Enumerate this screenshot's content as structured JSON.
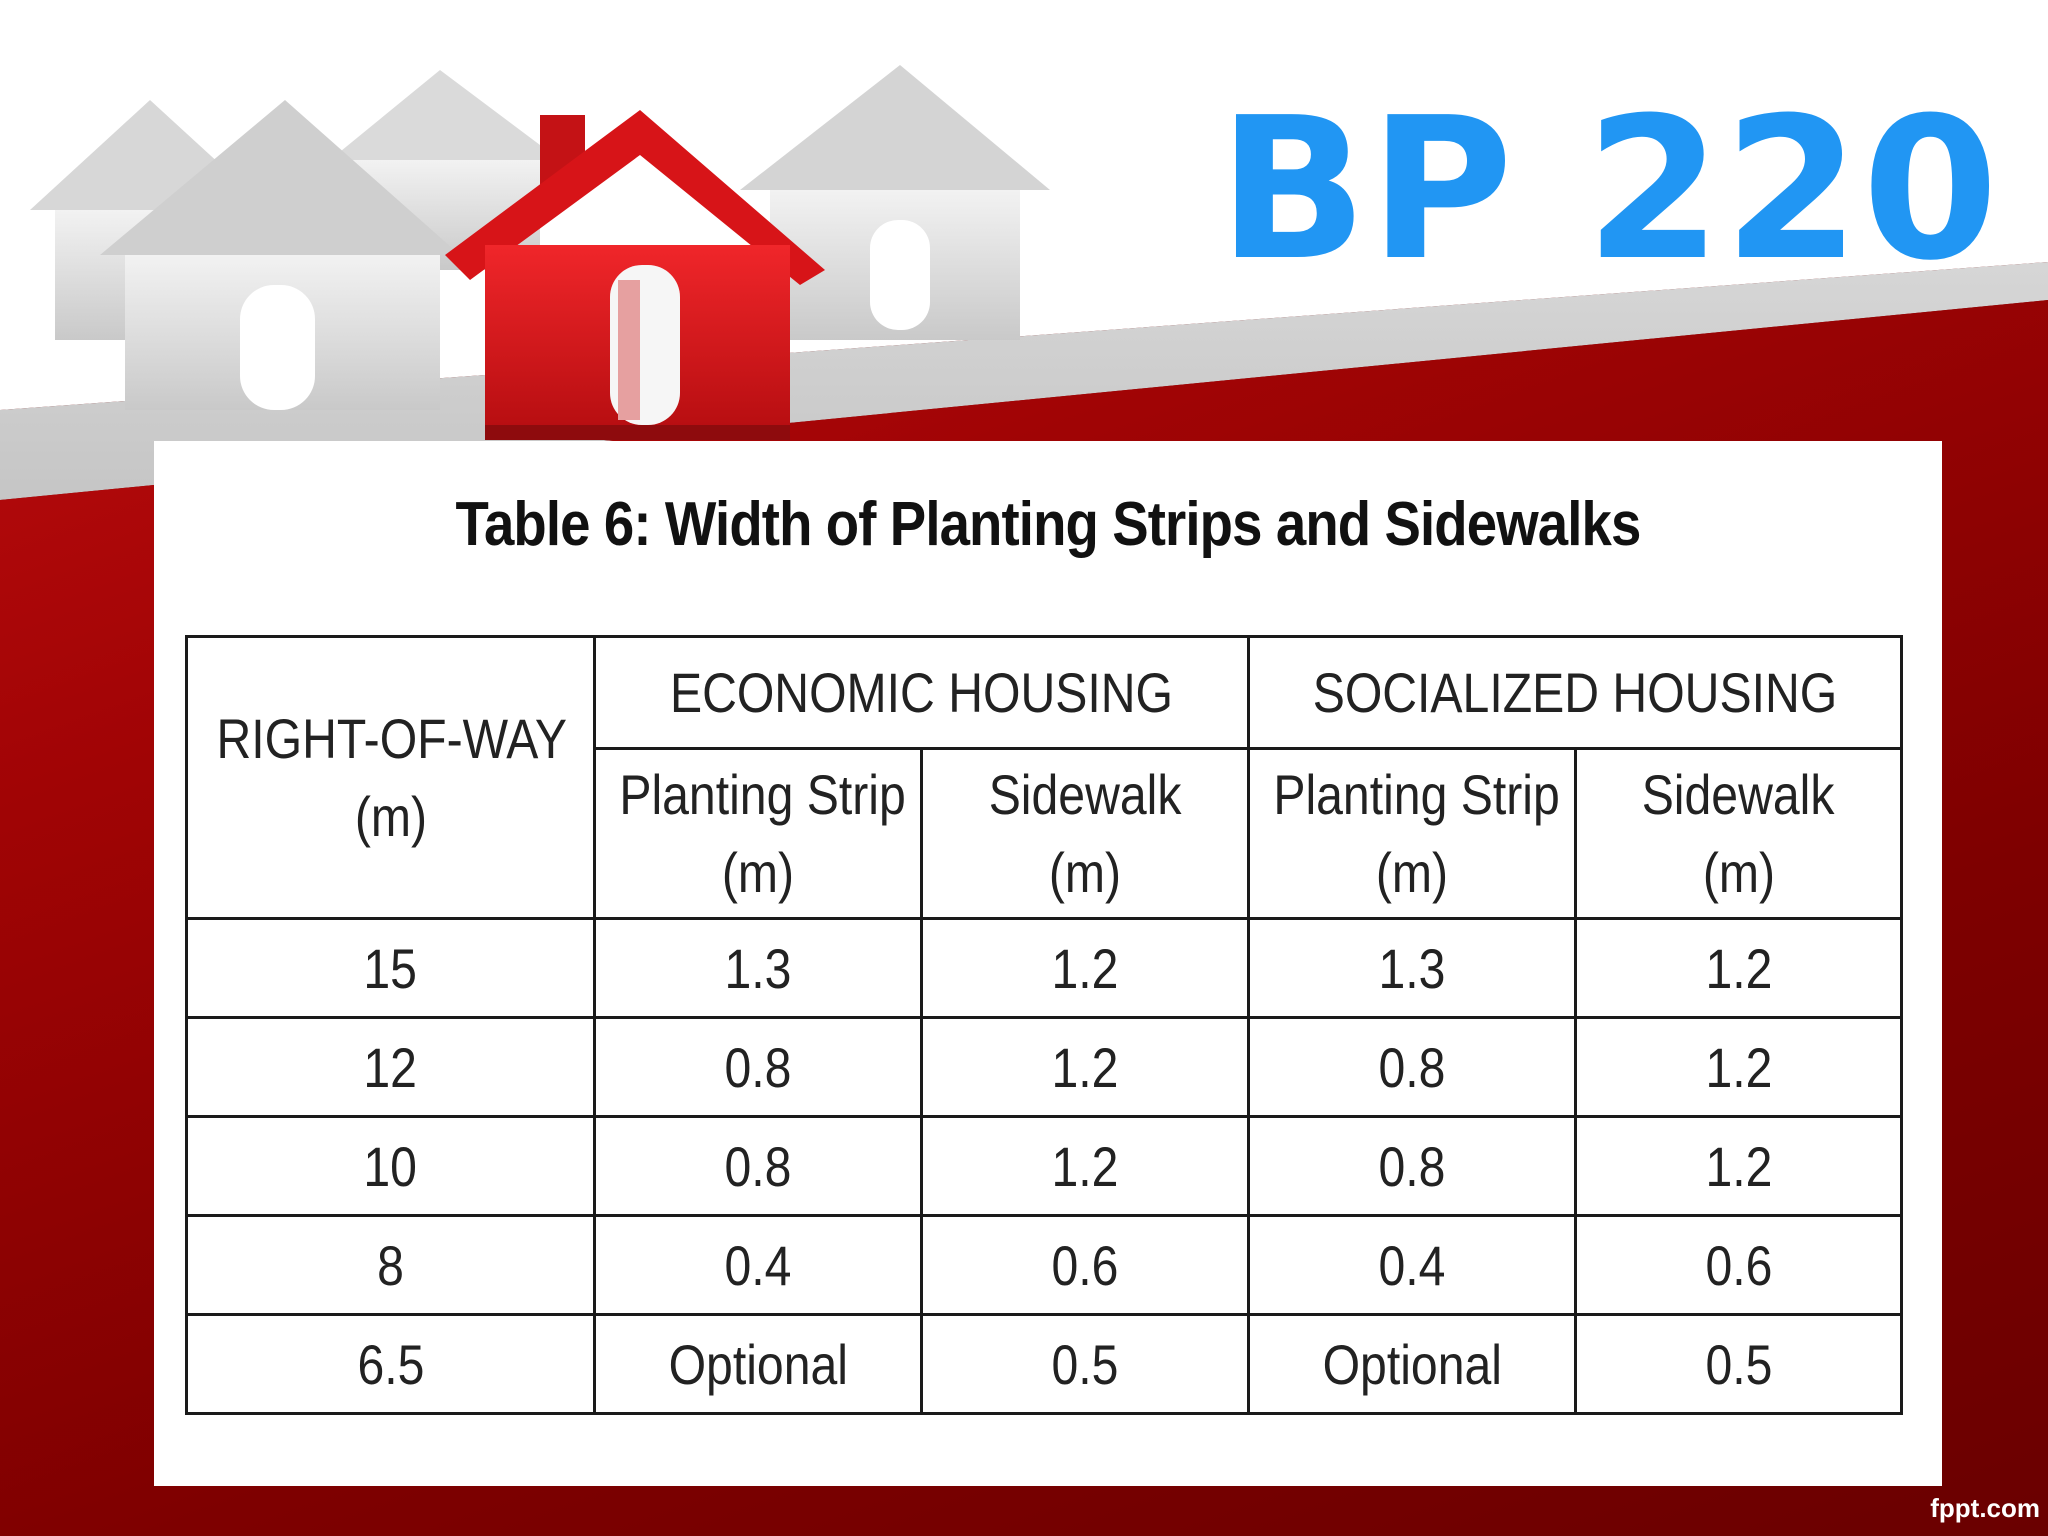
{
  "slide": {
    "title": "BP 220",
    "footer": "fppt.com"
  },
  "colors": {
    "title": "#2196f3",
    "red_band": "#a10405",
    "house_red": "#e31b1b"
  },
  "icons": [
    "house-icon"
  ],
  "table": {
    "caption": "Table 6: Width of Planting Strips and Sidewalks",
    "rowhead": [
      "RIGHT-OF-WAY",
      "(m)"
    ],
    "groups": [
      "ECONOMIC HOUSING",
      "SOCIALIZED HOUSING"
    ],
    "subheads": [
      [
        "Planting Strip",
        "(m)"
      ],
      [
        "Sidewalk",
        "(m)"
      ],
      [
        "Planting Strip",
        "(m)"
      ],
      [
        "Sidewalk",
        "(m)"
      ]
    ],
    "rows": [
      [
        "15",
        "1.3",
        "1.2",
        "1.3",
        "1.2"
      ],
      [
        "12",
        "0.8",
        "1.2",
        "0.8",
        "1.2"
      ],
      [
        "10",
        "0.8",
        "1.2",
        "0.8",
        "1.2"
      ],
      [
        "8",
        "0.4",
        "0.6",
        "0.4",
        "0.6"
      ],
      [
        "6.5",
        "Optional",
        "0.5",
        "Optional",
        "0.5"
      ]
    ]
  }
}
